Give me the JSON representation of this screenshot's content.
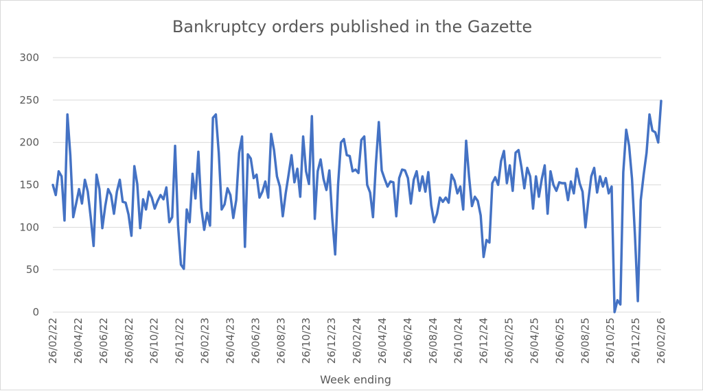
{
  "chart_data": {
    "type": "line",
    "title": "Bankruptcy orders published in the Gazette",
    "xlabel": "Week ending",
    "ylabel": "",
    "ylim": [
      0,
      300
    ],
    "y_ticks": [
      "0",
      "50",
      "100",
      "150",
      "200",
      "250",
      "300"
    ],
    "x_start": "26/02/22",
    "x_end": "26/02/26",
    "x_tick_labels": [
      "26/02/22",
      "26/04/22",
      "26/06/22",
      "26/08/22",
      "26/10/22",
      "26/12/22",
      "26/02/23",
      "26/04/23",
      "26/06/23",
      "26/08/23",
      "26/10/23",
      "26/12/23",
      "26/02/24",
      "26/04/24",
      "26/06/24",
      "26/08/24",
      "26/10/24",
      "26/12/24",
      "26/02/25",
      "26/04/25",
      "26/06/25",
      "26/08/25",
      "26/10/25",
      "26/12/25",
      "26/02/26"
    ],
    "grid": "horizontal",
    "legend": "none",
    "line_color": "#4472c4",
    "series": [
      {
        "name": "",
        "values": [
          150,
          138,
          166,
          160,
          108,
          233,
          185,
          112,
          128,
          145,
          128,
          156,
          142,
          112,
          78,
          162,
          145,
          99,
          125,
          145,
          138,
          116,
          142,
          156,
          130,
          129,
          115,
          90,
          172,
          151,
          99,
          133,
          121,
          142,
          135,
          122,
          131,
          138,
          133,
          147,
          106,
          112,
          196,
          103,
          56,
          51,
          121,
          106,
          163,
          134,
          189,
          123,
          97,
          117,
          102,
          229,
          233,
          188,
          121,
          127,
          146,
          138,
          111,
          132,
          188,
          207,
          77,
          186,
          181,
          158,
          162,
          135,
          142,
          154,
          135,
          210,
          191,
          160,
          148,
          113,
          140,
          162,
          185,
          153,
          169,
          136,
          207,
          166,
          151,
          231,
          110,
          166,
          180,
          157,
          144,
          167,
          111,
          68,
          150,
          200,
          204,
          185,
          184,
          166,
          168,
          164,
          203,
          207,
          150,
          141,
          112,
          175,
          224,
          167,
          157,
          148,
          154,
          153,
          113,
          158,
          168,
          167,
          158,
          128,
          156,
          166,
          143,
          160,
          142,
          165,
          126,
          106,
          116,
          135,
          130,
          135,
          129,
          162,
          155,
          140,
          148,
          121,
          202,
          160,
          125,
          136,
          131,
          114,
          65,
          85,
          82,
          152,
          159,
          150,
          178,
          190,
          152,
          173,
          143,
          188,
          191,
          171,
          146,
          170,
          160,
          122,
          160,
          136,
          157,
          173,
          116,
          166,
          150,
          143,
          153,
          152,
          152,
          132,
          154,
          140,
          169,
          152,
          142,
          100,
          132,
          160,
          170,
          141,
          160,
          148,
          158,
          140,
          148,
          0,
          14,
          9,
          165,
          215,
          196,
          157,
          91,
          13,
          132,
          162,
          188,
          233,
          214,
          212,
          200,
          249
        ]
      }
    ]
  }
}
